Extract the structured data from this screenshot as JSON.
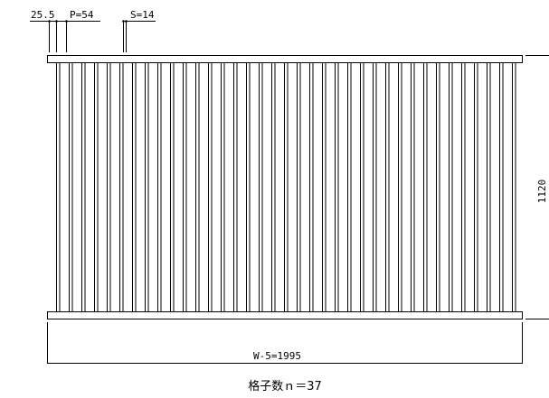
{
  "top_dims": {
    "margin": "25.5",
    "pitch": "P=54",
    "slat": "S=14"
  },
  "height_dim": "1120",
  "width_dim": "W-5=1995",
  "caption": "格子数ｎ＝37",
  "slat_count": 37
}
